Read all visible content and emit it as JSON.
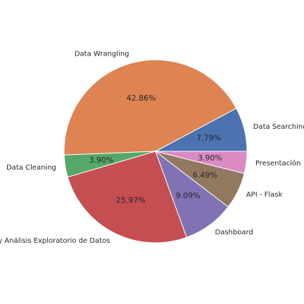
{
  "chart_data": {
    "type": "pie",
    "title": "",
    "start_angle_deg": 0,
    "direction": "counterclockwise",
    "slices": [
      {
        "label": "Data Searching",
        "value": 7.79,
        "pct_label": "7.79%",
        "color": "#4c72b0"
      },
      {
        "label": "Data Wrangling",
        "value": 42.86,
        "pct_label": "42.86%",
        "color": "#dd8452"
      },
      {
        "label": "Data Cleaning",
        "value": 3.9,
        "pct_label": "3.90%",
        "color": "#55a868"
      },
      {
        "label": "Visualización y Análisis Exploratorio de Datos",
        "value": 25.97,
        "pct_label": "25.97%",
        "color": "#c44e52"
      },
      {
        "label": "Dashboard",
        "value": 9.09,
        "pct_label": "9.09%",
        "color": "#8172b3"
      },
      {
        "label": "API - Flask",
        "value": 6.49,
        "pct_label": "6.49%",
        "color": "#937860"
      },
      {
        "label": "Presentación",
        "value": 3.9,
        "pct_label": "3.90%",
        "color": "#da8bc3"
      }
    ]
  }
}
